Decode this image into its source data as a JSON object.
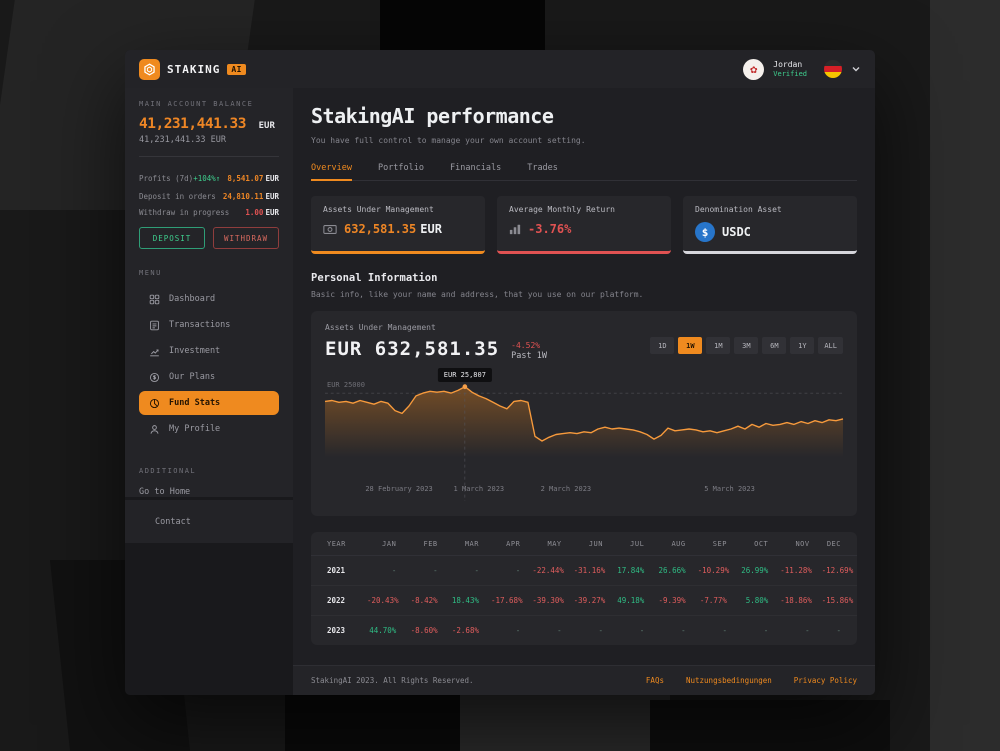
{
  "colors": {
    "accent": "#ef8a1f",
    "green": "#3ecf8e",
    "red": "#e05252",
    "usdc_blue": "#2775ca"
  },
  "header": {
    "brand": "STAKING",
    "brand_badge": "AI",
    "user": {
      "name": "Jordan",
      "status": "Verified"
    },
    "language_flag": "german-flag"
  },
  "sidebar": {
    "balance_label": "MAIN ACCOUNT BALANCE",
    "balance_primary": "41,231,441.33",
    "balance_currency": "EUR",
    "balance_secondary": "41,231,441.33 EUR",
    "stats": [
      {
        "label": "Profits (7d)",
        "badge": "+104%↑",
        "value": "8,541.07",
        "unit": "EUR",
        "tone": "orange"
      },
      {
        "label": "Deposit in orders",
        "badge": "",
        "value": "24,810.11",
        "unit": "EUR",
        "tone": "orange"
      },
      {
        "label": "Withdraw in progress",
        "badge": "",
        "value": "1.00",
        "unit": "EUR",
        "tone": "red"
      }
    ],
    "deposit_label": "DEPOSIT",
    "withdraw_label": "WITHDRAW",
    "menu_label": "MENU",
    "menu": [
      {
        "label": "Dashboard",
        "icon": "dashboard-icon",
        "active": false
      },
      {
        "label": "Transactions",
        "icon": "transactions-icon",
        "active": false
      },
      {
        "label": "Investment",
        "icon": "investment-icon",
        "active": false
      },
      {
        "label": "Our Plans",
        "icon": "plans-icon",
        "active": false
      },
      {
        "label": "Fund Stats",
        "icon": "fund-stats-icon",
        "active": true
      },
      {
        "label": "My Profile",
        "icon": "profile-icon",
        "active": false
      }
    ],
    "additional_label": "ADDITIONAL",
    "home_label": "Go to Home",
    "contact_label": "Contact"
  },
  "main": {
    "title": "StakingAI performance",
    "subtitle": "You have full control to manage your own account setting.",
    "tabs": [
      {
        "label": "Overview",
        "active": true
      },
      {
        "label": "Portfolio",
        "active": false
      },
      {
        "label": "Financials",
        "active": false
      },
      {
        "label": "Trades",
        "active": false
      }
    ],
    "cards": [
      {
        "label": "Assets Under Management",
        "value": "632,581.35",
        "unit": "EUR",
        "icon": "banknote-icon",
        "accent": "#ef8a1f"
      },
      {
        "label": "Average Monthly Return",
        "value": "-3.76%",
        "icon": "bar-chart-icon",
        "accent": "#e05252"
      },
      {
        "label": "Denomination Asset",
        "value": "USDC",
        "icon": "usdc-icon",
        "accent": "#d6d6dc"
      }
    ],
    "section": {
      "title": "Personal Information",
      "subtitle": "Basic info, like your name and address, that you use on our platform."
    }
  },
  "chart_card": {
    "label": "Assets Under Management",
    "value_prefix": "EUR",
    "value": "632,581.35",
    "change": "-4.52%",
    "change_period": "Past 1W",
    "ranges": [
      "1D",
      "1W",
      "1M",
      "3M",
      "6M",
      "1Y",
      "ALL"
    ],
    "active_range": "1W"
  },
  "chart_data": [
    {
      "type": "line",
      "title": "Assets Under Management (EUR) — Past 1W",
      "line_color": "#f79a3c",
      "x_tick_labels": [
        "28 February 2023",
        "1 March 2023",
        "2 March 2023",
        "5 March 2023"
      ],
      "x_tick_positions_pct": [
        14.3,
        29.7,
        46.5,
        78.1
      ],
      "gridline": {
        "label": "EUR 25000",
        "value_eur": 25000,
        "y_pct": 11
      },
      "highlight": {
        "x_pct": 27,
        "label": "EUR 25,807",
        "value_eur": 25807
      },
      "points_y_pct": [
        20,
        19,
        21,
        20,
        22,
        19,
        21,
        23,
        20,
        22,
        30,
        33,
        25,
        14,
        11,
        9,
        10,
        9,
        11,
        8,
        4,
        10,
        14,
        17,
        21,
        25,
        28,
        20,
        19,
        21,
        58,
        63,
        59,
        56,
        55,
        54,
        55,
        53,
        54,
        50,
        48,
        50,
        49,
        50,
        51,
        53,
        56,
        61,
        57,
        49,
        52,
        51,
        50,
        51,
        53,
        52,
        54,
        52,
        50,
        47,
        50,
        45,
        48,
        44,
        46,
        45,
        43,
        45,
        42,
        44,
        41,
        43,
        40,
        41,
        39
      ]
    },
    {
      "type": "table",
      "title": "Monthly returns by year",
      "columns": [
        "YEAR",
        "JAN",
        "FEB",
        "MAR",
        "APR",
        "MAY",
        "JUN",
        "JUL",
        "AUG",
        "SEP",
        "OCT",
        "NOV",
        "DEC"
      ],
      "rows": [
        {
          "year": "2021",
          "values": [
            "-",
            "-",
            "-",
            "-",
            "-22.44%",
            "-31.16%",
            "17.84%",
            "26.66%",
            "-10.29%",
            "26.99%",
            "-11.28%",
            "-12.69%"
          ]
        },
        {
          "year": "2022",
          "values": [
            "-20.43%",
            "-8.42%",
            "18.43%",
            "-17.68%",
            "-39.30%",
            "-39.27%",
            "49.18%",
            "-9.39%",
            "-7.77%",
            "5.80%",
            "-18.86%",
            "-15.86%"
          ]
        },
        {
          "year": "2023",
          "values": [
            "44.70%",
            "-8.60%",
            "-2.68%",
            "-",
            "-",
            "-",
            "-",
            "-",
            "-",
            "-",
            "-",
            "-"
          ]
        }
      ]
    }
  ],
  "footer": {
    "copyright": "StakingAI 2023. All Rights Reserved.",
    "links": [
      "FAQs",
      "Nutzungsbedingungen",
      "Privacy Policy"
    ]
  }
}
